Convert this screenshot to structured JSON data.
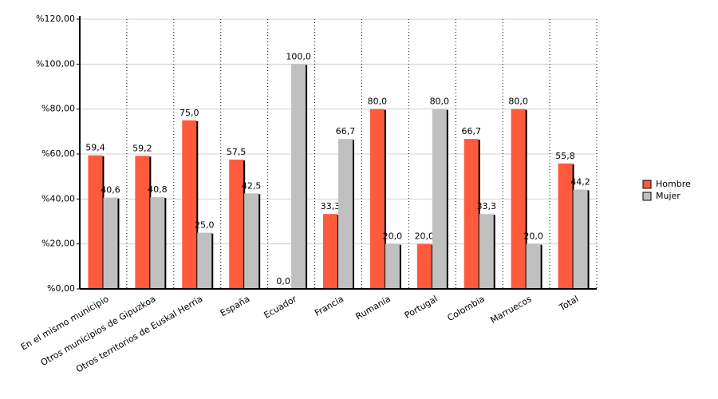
{
  "chart_data": {
    "type": "bar",
    "categories": [
      "En el mismo municipio",
      "Otros municipios de Gipuzkoa",
      "Otros territorios de Euskal Herria",
      "España",
      "Ecuador",
      "Francia",
      "Rumania",
      "Portugal",
      "Colombia",
      "Marruecos",
      "Total"
    ],
    "series": [
      {
        "name": "Hombre",
        "color": "#ff5a3c",
        "values": [
          59.4,
          59.2,
          75.0,
          57.5,
          0.0,
          33.3,
          80.0,
          20.0,
          66.7,
          80.0,
          55.8
        ],
        "value_labels": [
          "59,4",
          "59,2",
          "75,0",
          "57,5",
          "0,0",
          "33,3",
          "80,0",
          "20,0",
          "66,7",
          "80,0",
          "55,8"
        ]
      },
      {
        "name": "Mujer",
        "color": "#c0c0c0",
        "values": [
          40.6,
          40.8,
          25.0,
          42.5,
          100.0,
          66.7,
          20.0,
          80.0,
          33.3,
          20.0,
          44.2
        ],
        "value_labels": [
          "40,6",
          "40,8",
          "25,0",
          "42,5",
          "100,0",
          "66,7",
          "20,0",
          "80,0",
          "33,3",
          "20,0",
          "44,2"
        ]
      }
    ],
    "ylim": [
      0,
      120
    ],
    "yticks": [
      {
        "value": 0,
        "label": "%0,00"
      },
      {
        "value": 20,
        "label": "%20,00"
      },
      {
        "value": 40,
        "label": "%40,00"
      },
      {
        "value": 60,
        "label": "%60,00"
      },
      {
        "value": 80,
        "label": "%80,00"
      },
      {
        "value": 100,
        "label": "%100,00"
      },
      {
        "value": 120,
        "label": "%120,00"
      }
    ],
    "grid": true,
    "legend": "right"
  }
}
